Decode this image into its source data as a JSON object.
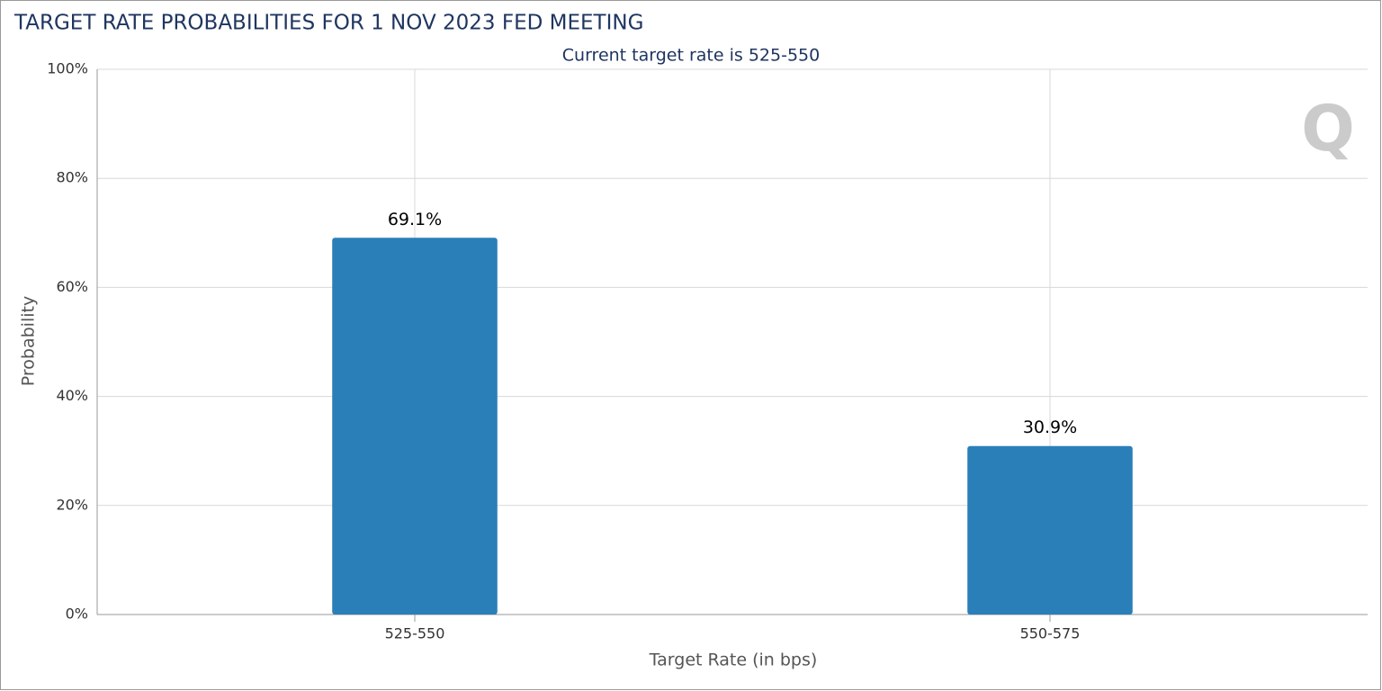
{
  "chart_data": {
    "type": "bar",
    "title": "TARGET RATE PROBABILITIES FOR 1 NOV 2023 FED MEETING",
    "subtitle": "Current target rate is 525-550",
    "x_label": "Target Rate (in bps)",
    "y_label": "Probability",
    "categories": [
      "525-550",
      "550-575"
    ],
    "values": [
      69.1,
      30.9
    ],
    "value_labels": [
      "69.1%",
      "30.9%"
    ],
    "color": "#2a7fb8",
    "ylim": [
      0,
      100
    ],
    "yticks": [
      {
        "value": 0,
        "label": "0%"
      },
      {
        "value": 20,
        "label": "20%"
      },
      {
        "value": 40,
        "label": "40%"
      },
      {
        "value": 60,
        "label": "60%"
      },
      {
        "value": 80,
        "label": "80%"
      },
      {
        "value": 100,
        "label": "100%"
      }
    ],
    "grid": true
  }
}
